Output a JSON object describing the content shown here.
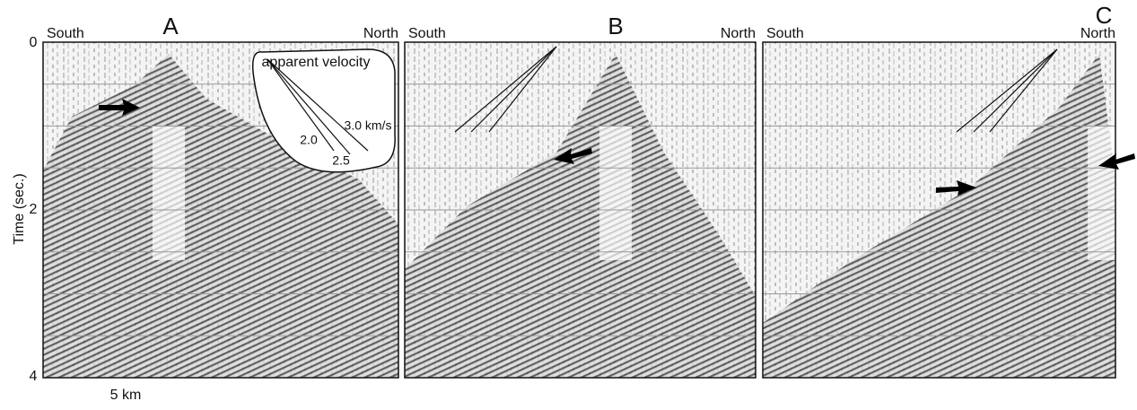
{
  "axis": {
    "label": "Time (sec.)",
    "ticks": [
      "0",
      "2",
      "4"
    ],
    "scale": "5 km"
  },
  "panels": [
    {
      "title": "A",
      "left": "South",
      "right": "North",
      "inset": {
        "title": "apparent velocity",
        "labels": [
          "2.0",
          "2.5",
          "3.0 km/s"
        ]
      }
    },
    {
      "title": "B",
      "left": "South",
      "right": "North"
    },
    {
      "title": "C",
      "left": "South",
      "right": "North"
    }
  ]
}
